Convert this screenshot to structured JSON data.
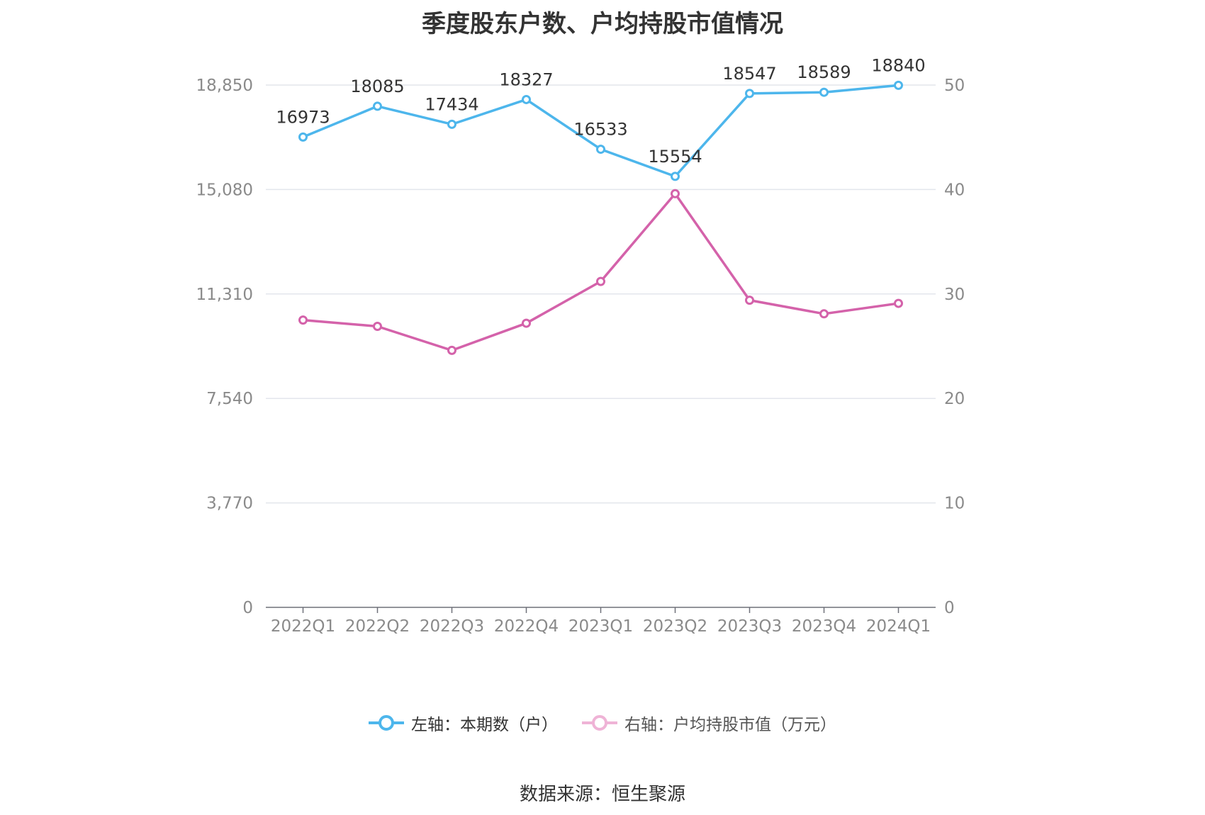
{
  "chart_data": {
    "type": "line",
    "title": "季度股东户数、户均持股市值情况",
    "categories": [
      "2022Q1",
      "2022Q2",
      "2022Q3",
      "2022Q4",
      "2023Q1",
      "2023Q2",
      "2023Q3",
      "2023Q4",
      "2024Q1"
    ],
    "left_axis": {
      "ylim": [
        0,
        18850
      ],
      "ticks": [
        "0",
        "3,770",
        "7,540",
        "11,310",
        "15,080",
        "18,850"
      ]
    },
    "right_axis": {
      "ylim": [
        0,
        50
      ],
      "ticks": [
        "0",
        "10",
        "20",
        "30",
        "40",
        "50"
      ]
    },
    "series": [
      {
        "name": "左轴：本期数（户）",
        "axis": "left",
        "color": "#4db6ec",
        "values": [
          16973,
          18085,
          17434,
          18327,
          16533,
          15554,
          18547,
          18589,
          18840
        ],
        "labels": [
          "16973",
          "18085",
          "17434",
          "18327",
          "16533",
          "15554",
          "18547",
          "18589",
          "18840"
        ]
      },
      {
        "name": "右轴：户均持股市值（万元）",
        "axis": "right",
        "color": "#d462aa",
        "values": [
          27.5,
          26.9,
          24.6,
          27.2,
          31.2,
          39.6,
          29.4,
          28.1,
          29.1
        ]
      }
    ],
    "grid": true,
    "legend_position": "bottom-center"
  },
  "source_text": "数据来源：恒生聚源"
}
